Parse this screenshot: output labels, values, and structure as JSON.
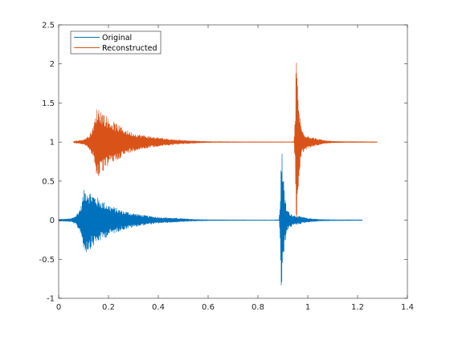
{
  "figure": {
    "background": "#ffffff"
  },
  "chart_data": {
    "type": "line",
    "title": "",
    "xlabel": "",
    "ylabel": "",
    "xlim": [
      0,
      1.4
    ],
    "ylim": [
      -1,
      2.5
    ],
    "x_ticks": [
      0,
      0.2,
      0.4,
      0.6,
      0.8,
      1,
      1.2,
      1.4
    ],
    "x_tick_labels": [
      "0",
      "0.2",
      "0.4",
      "0.6",
      "0.8",
      "1",
      "1.2",
      "1.4"
    ],
    "y_ticks": [
      -1,
      -0.5,
      0,
      0.5,
      1,
      1.5,
      2,
      2.5
    ],
    "y_tick_labels": [
      "-1",
      "-0.5",
      "0",
      "0.5",
      "1",
      "1.5",
      "2",
      "2.5"
    ],
    "grid": false,
    "legend_position": "top-left",
    "series": [
      {
        "name": "Original",
        "color": "#0072BD",
        "style": "dense oscillating waveform",
        "offset": 0,
        "x_range": [
          0,
          1.22
        ],
        "envelope": [
          [
            0.0,
            0.01
          ],
          [
            0.05,
            0.02
          ],
          [
            0.07,
            0.06
          ],
          [
            0.09,
            0.18
          ],
          [
            0.1,
            0.38
          ],
          [
            0.11,
            0.42
          ],
          [
            0.13,
            0.36
          ],
          [
            0.16,
            0.28
          ],
          [
            0.2,
            0.2
          ],
          [
            0.25,
            0.13
          ],
          [
            0.3,
            0.09
          ],
          [
            0.35,
            0.06
          ],
          [
            0.4,
            0.04
          ],
          [
            0.45,
            0.03
          ],
          [
            0.5,
            0.02
          ],
          [
            0.55,
            0.01
          ],
          [
            0.6,
            0.006
          ],
          [
            0.7,
            0.004
          ],
          [
            0.85,
            0.003
          ],
          [
            0.885,
            0.005
          ],
          [
            0.89,
            0.3
          ],
          [
            0.893,
            1.0
          ],
          [
            0.897,
            0.9
          ],
          [
            0.905,
            0.4
          ],
          [
            0.915,
            0.15
          ],
          [
            0.93,
            0.09
          ],
          [
            0.95,
            0.06
          ],
          [
            0.98,
            0.04
          ],
          [
            1.0,
            0.025
          ],
          [
            1.05,
            0.01
          ],
          [
            1.1,
            0.006
          ],
          [
            1.22,
            0.004
          ]
        ]
      },
      {
        "name": "Reconstructed",
        "color": "#D95319",
        "style": "dense oscillating waveform",
        "offset": 1,
        "x_range": [
          0.06,
          1.28
        ],
        "envelope": [
          [
            0.06,
            0.01
          ],
          [
            0.1,
            0.03
          ],
          [
            0.12,
            0.08
          ],
          [
            0.14,
            0.2
          ],
          [
            0.15,
            0.42
          ],
          [
            0.16,
            0.45
          ],
          [
            0.18,
            0.38
          ],
          [
            0.2,
            0.3
          ],
          [
            0.24,
            0.22
          ],
          [
            0.28,
            0.14
          ],
          [
            0.32,
            0.1
          ],
          [
            0.37,
            0.07
          ],
          [
            0.42,
            0.05
          ],
          [
            0.47,
            0.03
          ],
          [
            0.52,
            0.02
          ],
          [
            0.57,
            0.01
          ],
          [
            0.62,
            0.006
          ],
          [
            0.75,
            0.004
          ],
          [
            0.93,
            0.003
          ],
          [
            0.945,
            0.006
          ],
          [
            0.95,
            0.35
          ],
          [
            0.953,
            1.15
          ],
          [
            0.957,
            0.95
          ],
          [
            0.965,
            0.45
          ],
          [
            0.975,
            0.17
          ],
          [
            0.99,
            0.1
          ],
          [
            1.01,
            0.07
          ],
          [
            1.04,
            0.04
          ],
          [
            1.07,
            0.02
          ],
          [
            1.1,
            0.01
          ],
          [
            1.15,
            0.006
          ],
          [
            1.28,
            0.004
          ]
        ]
      }
    ]
  }
}
